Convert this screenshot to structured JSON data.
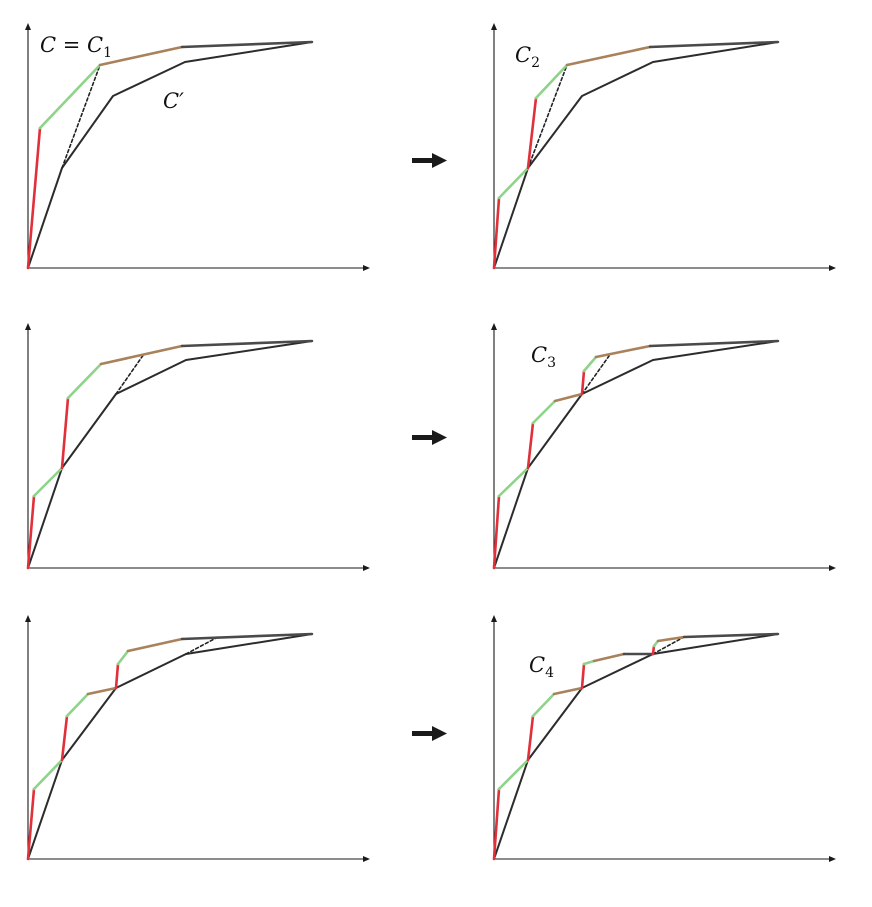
{
  "colors": {
    "red": "#e0303a",
    "green": "#8fd38a",
    "brown": "#a9815a",
    "gray": "#4a4a4a",
    "black": "#2c2c2c"
  },
  "icons": {
    "step_arrow": "right-arrow-icon"
  },
  "panels": [
    {
      "id": "row1-left",
      "labels": [
        {
          "main": "C = C",
          "sub": "1"
        },
        {
          "main": "C′",
          "sub": ""
        }
      ]
    },
    {
      "id": "row1-right",
      "labels": [
        {
          "main": "C",
          "sub": "2"
        }
      ]
    },
    {
      "id": "row2-left",
      "labels": []
    },
    {
      "id": "row2-right",
      "labels": [
        {
          "main": "C",
          "sub": "3"
        }
      ]
    },
    {
      "id": "row3-left",
      "labels": []
    },
    {
      "id": "row3-right",
      "labels": [
        {
          "main": "C",
          "sub": "4"
        }
      ]
    }
  ]
}
